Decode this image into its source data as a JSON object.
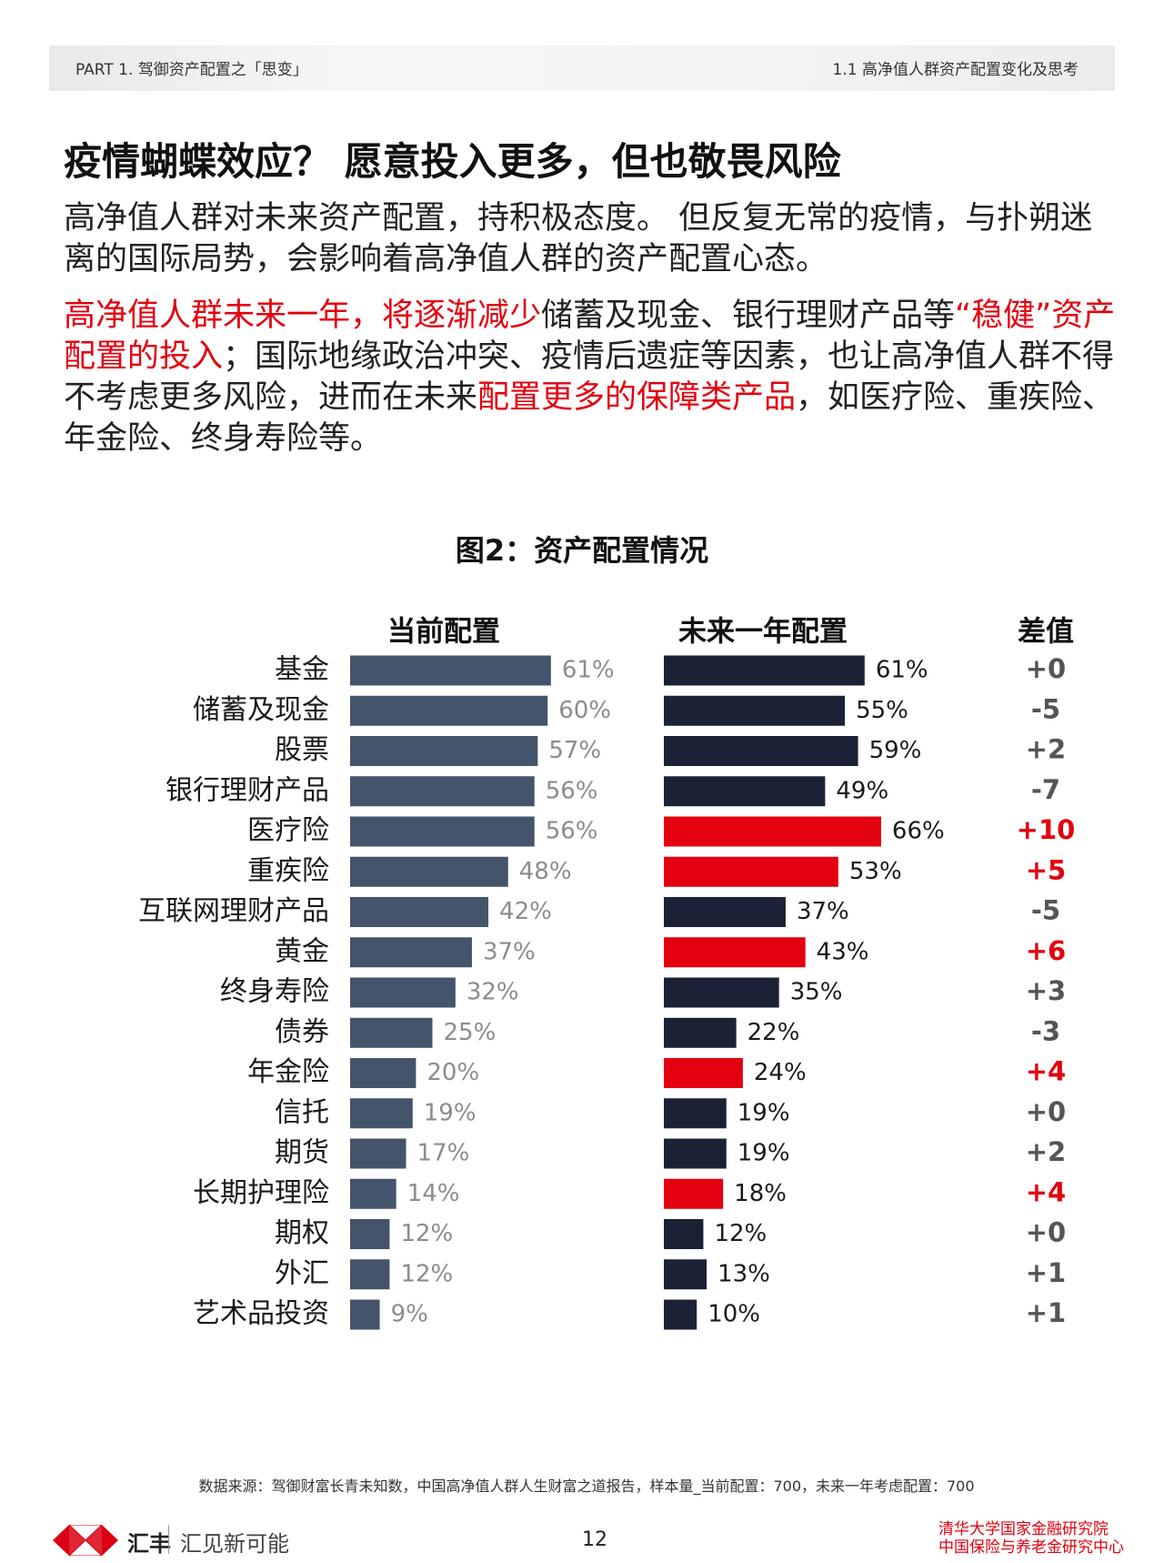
{
  "header": {
    "left": "PART 1. 驾御资产配置之「思变」",
    "right": "1.1 高净值人群资产配置变化及思考"
  },
  "title": "疫情蝴蝶效应？ 愿意投入更多，但也敬畏风险",
  "paragraph1": "高净值人群对未来资产配置，持积极态度。 但反复无常的疫情，与扑朔迷离的国际局势，会影响着高净值人群的资产配置心态。",
  "paragraph2": [
    {
      "text": "高净值人群未来一年，将逐渐减少",
      "color": "#e3000f"
    },
    {
      "text": "储蓄及现金、银行理财产品等",
      "color": "#222222"
    },
    {
      "text": "“稳健”资产配置的投入",
      "color": "#e3000f"
    },
    {
      "text": "；国际地缘政治冲突、疫情后遗症等因素，也让高净值人群不得不考虑更多风险，进而在未来",
      "color": "#222222"
    },
    {
      "text": "配置更多的保障类产品",
      "color": "#e3000f"
    },
    {
      "text": "，如医疗险、重疾险、年金险、终身寿险等。",
      "color": "#222222"
    }
  ],
  "chart_data": {
    "type": "bar",
    "title": "图2：资产配置情况",
    "categories": [
      "基金",
      "储蓄及现金",
      "股票",
      "银行理财产品",
      "医疗险",
      "重疾险",
      "互联网理财产品",
      "黄金",
      "终身寿险",
      "债券",
      "年金险",
      "信托",
      "期货",
      "长期护理险",
      "期权",
      "外汇",
      "艺术品投资"
    ],
    "series": [
      {
        "name": "当前配置",
        "color": "#44546a",
        "label_color": "#8c8c8c",
        "values": [
          61,
          60,
          57,
          56,
          56,
          48,
          42,
          37,
          32,
          25,
          20,
          19,
          17,
          14,
          12,
          12,
          9
        ],
        "value_labels": [
          "61%",
          "60%",
          "57%",
          "56%",
          "56%",
          "48%",
          "42%",
          "37%",
          "32%",
          "25%",
          "20%",
          "19%",
          "17%",
          "14%",
          "12%",
          "12%",
          "9%"
        ]
      },
      {
        "name": "未来一年配置",
        "color": "#1c2236",
        "label_color": "#1a1a1a",
        "colors": [
          "#1c2236",
          "#1c2236",
          "#1c2236",
          "#1c2236",
          "#e3000f",
          "#e3000f",
          "#1c2236",
          "#e3000f",
          "#1c2236",
          "#1c2236",
          "#e3000f",
          "#1c2236",
          "#1c2236",
          "#e3000f",
          "#1c2236",
          "#1c2236",
          "#1c2236"
        ],
        "values": [
          61,
          55,
          59,
          49,
          66,
          53,
          37,
          43,
          35,
          22,
          24,
          19,
          19,
          18,
          12,
          13,
          10
        ],
        "value_labels": [
          "61%",
          "55%",
          "59%",
          "49%",
          "66%",
          "53%",
          "37%",
          "43%",
          "35%",
          "22%",
          "24%",
          "19%",
          "19%",
          "18%",
          "12%",
          "13%",
          "10%"
        ]
      }
    ],
    "difference": {
      "name": "差值",
      "values": [
        0,
        -5,
        2,
        -7,
        10,
        5,
        -5,
        6,
        3,
        -3,
        4,
        0,
        2,
        4,
        0,
        1,
        1
      ],
      "value_labels": [
        "+0",
        "-5",
        "+2",
        "-7",
        "+10",
        "+5",
        "-5",
        "+6",
        "+3",
        "-3",
        "+4",
        "+0",
        "+2",
        "+4",
        "+0",
        "+1",
        "+1"
      ],
      "colors": [
        "#555555",
        "#555555",
        "#555555",
        "#555555",
        "#e3000f",
        "#e3000f",
        "#555555",
        "#e3000f",
        "#555555",
        "#555555",
        "#e3000f",
        "#555555",
        "#555555",
        "#e3000f",
        "#555555",
        "#555555",
        "#555555"
      ]
    },
    "source": "数据来源：驾御财富长青未知数，中国高净值人群人生财富之道报告，样本量_当前配置：700，未来一年考虑配置：700"
  },
  "footer": {
    "brand": "汇丰",
    "slogan": "汇见新可能",
    "page": "12",
    "institutions": [
      "清华大学国家金融研究院",
      "中国保险与养老金研究中心"
    ]
  }
}
